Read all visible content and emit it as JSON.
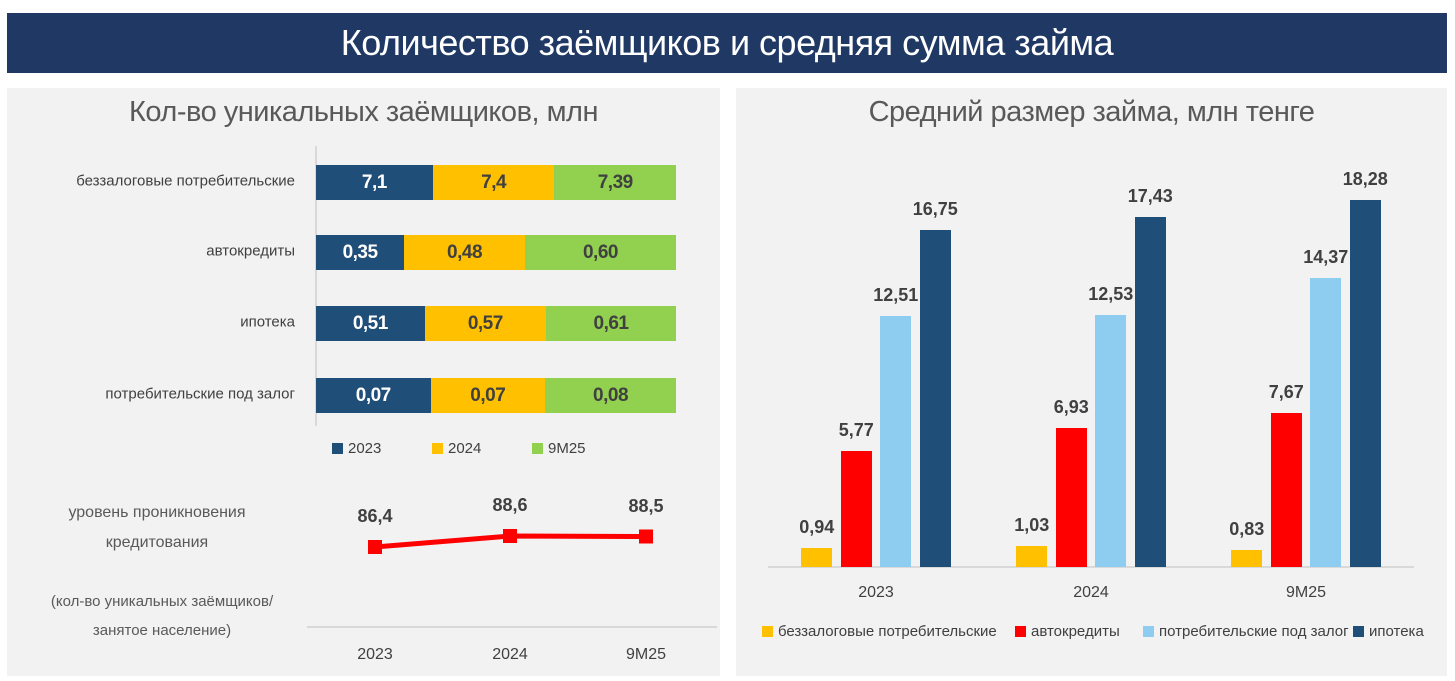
{
  "header": {
    "title": "Количество заёмщиков и средняя сумма займа"
  },
  "chart_data": [
    {
      "type": "bar",
      "orientation": "horizontal",
      "stacked": "percent",
      "title": "Кол-во уникальных заёмщиков, млн",
      "categories": [
        "беззалоговые потребительские",
        "автокредиты",
        "ипотека",
        "потребительские под залог"
      ],
      "series": [
        {
          "name": "2023",
          "color": "#1f4e79",
          "values": [
            7.1,
            0.35,
            0.51,
            0.07
          ],
          "labels": [
            "7,1",
            "0,35",
            "0,51",
            "0,07"
          ]
        },
        {
          "name": "2024",
          "color": "#ffc000",
          "values": [
            7.4,
            0.48,
            0.57,
            0.07
          ],
          "labels": [
            "7,4",
            "0,48",
            "0,57",
            "0,07"
          ]
        },
        {
          "name": "9M25",
          "color": "#92d050",
          "values": [
            7.39,
            0.6,
            0.61,
            0.08
          ],
          "labels": [
            "7,39",
            "0,60",
            "0,61",
            "0,08"
          ]
        }
      ],
      "legend": "bottom"
    },
    {
      "type": "line",
      "ylabel": "уровень проникновения кредитования",
      "note": "(кол-во уникальных заёмщиков/занятое население)",
      "categories": [
        "2023",
        "2024",
        "9M25"
      ],
      "values": [
        86.4,
        88.6,
        88.5
      ],
      "labels": [
        "86,4",
        "88,6",
        "88,5"
      ],
      "color": "#ff0000"
    },
    {
      "type": "bar",
      "title": "Средний размер займа, млн тенге",
      "categories": [
        "2023",
        "2024",
        "9M25"
      ],
      "ylim": [
        0,
        20
      ],
      "series": [
        {
          "name": "беззалоговые потребительские",
          "color": "#ffc000",
          "values": [
            0.94,
            1.03,
            0.83
          ],
          "labels": [
            "0,94",
            "1,03",
            "0,83"
          ]
        },
        {
          "name": "автокредиты",
          "color": "#ff0000",
          "values": [
            5.77,
            6.93,
            7.67
          ],
          "labels": [
            "5,77",
            "6,93",
            "7,67"
          ]
        },
        {
          "name": "потребительские под залог",
          "color": "#8ecdf0",
          "values": [
            12.51,
            12.53,
            14.37
          ],
          "labels": [
            "12,51",
            "12,53",
            "14,37"
          ]
        },
        {
          "name": "ипотека",
          "color": "#1f4e79",
          "values": [
            16.75,
            17.43,
            18.28
          ],
          "labels": [
            "16,75",
            "17,43",
            "18,28"
          ]
        }
      ],
      "legend": "bottom"
    }
  ]
}
